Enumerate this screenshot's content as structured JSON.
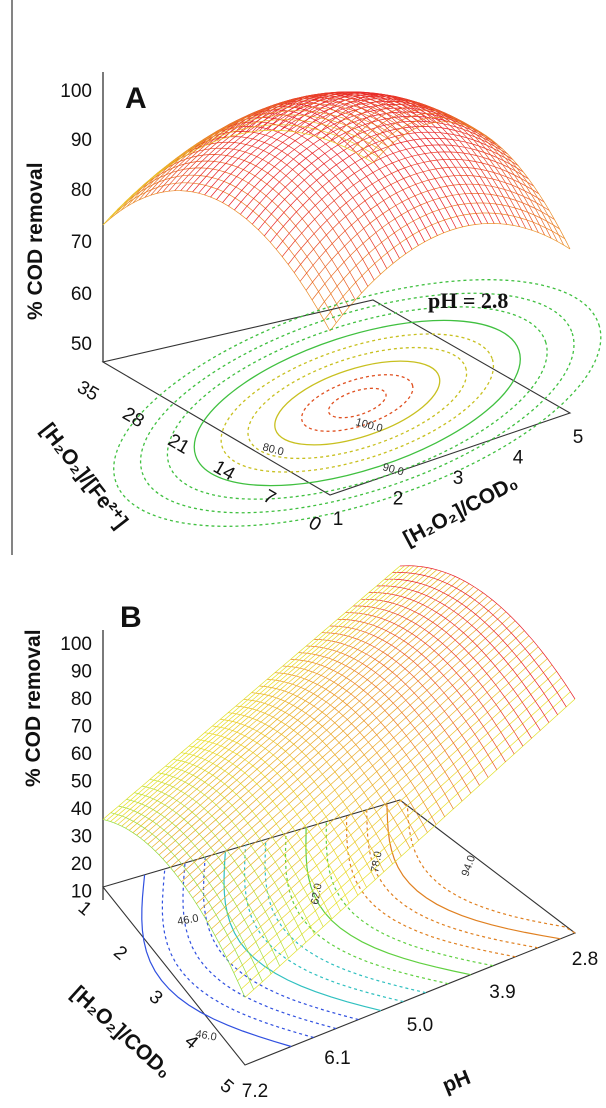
{
  "chart_data": [
    {
      "panel": "A",
      "type": "surface",
      "zlabel": "% COD removal",
      "zticks": [
        "100",
        "90",
        "80",
        "70",
        "60",
        "50"
      ],
      "x_label": "[H₂O₂]/COD₀",
      "x_ticks": [
        "1",
        "2",
        "3",
        "4",
        "5"
      ],
      "y_label": "[H₂O₂]/[Fe²⁺]",
      "y_ticks": [
        "0",
        "7",
        "14",
        "21",
        "28",
        "35"
      ],
      "annotation": "pH = 2.8",
      "contour_labels": [
        "100.0",
        "90.0",
        "80.0"
      ],
      "surface_samples": [
        {
          "x": 1,
          "y": 35,
          "z": 71
        },
        {
          "x": 1,
          "y": 0,
          "z": 100
        },
        {
          "x": 3,
          "y": 17,
          "z": 103
        },
        {
          "x": 5,
          "y": 0,
          "z": 73
        },
        {
          "x": 5,
          "y": 35,
          "z": 45
        }
      ]
    },
    {
      "panel": "B",
      "type": "surface",
      "zlabel": "% COD removal",
      "zticks": [
        "100",
        "90",
        "80",
        "70",
        "60",
        "50",
        "40",
        "30",
        "20",
        "10"
      ],
      "x_label": "pH",
      "x_ticks": [
        "7.2",
        "6.1",
        "5.0",
        "3.9",
        "2.8"
      ],
      "y_label": "[H₂O₂]/COD₀",
      "y_ticks": [
        "1",
        "2",
        "3",
        "4",
        "5"
      ],
      "contour_labels": [
        "94.0",
        "78.0",
        "62.0",
        "46.0",
        "46.0"
      ],
      "surface_samples": [
        {
          "pH": 7.2,
          "ratio": 1,
          "z": 30
        },
        {
          "pH": 2.8,
          "ratio": 1,
          "z": 55
        },
        {
          "pH": 2.8,
          "ratio": 3,
          "z": 100
        },
        {
          "pH": 7.2,
          "ratio": 5,
          "z": 38
        }
      ]
    }
  ],
  "panels": {
    "A": {
      "letter": "A",
      "ylabel": "% COD removal",
      "annotation": "pH = 2.8"
    },
    "B": {
      "letter": "B",
      "ylabel": "% COD removal"
    }
  },
  "colors": {
    "high": "#e8202a",
    "mid": "#e8e02a",
    "low": "#2ad84a",
    "lowest": "#2ab8e8",
    "contour_blue": "#3050e0"
  }
}
